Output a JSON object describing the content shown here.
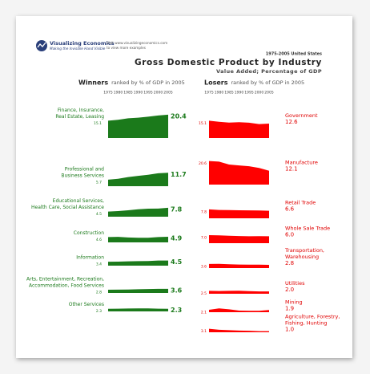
{
  "header": {
    "brand": "Visualizing Economics",
    "tagline": "Making the Invisible Hand Visible",
    "visit": "Visit www.visualizingeconomics.com",
    "visit2": "to view more examples"
  },
  "chart_data": {
    "type": "area",
    "supertitle": "1975-2005 United States",
    "title": "Gross Domestic Product by Industry",
    "subtitle": "Value Added; Percentage of GDP",
    "x": [
      1975,
      1980,
      1985,
      1990,
      1995,
      2000,
      2005
    ],
    "xticks": [
      1975,
      1980,
      1985,
      1990,
      1995,
      2000,
      2005
    ],
    "ylim": [
      0,
      21
    ],
    "groups": [
      {
        "title": "Winners",
        "note": "ranked by % of GDP in 2005",
        "color": "#1b7a1b",
        "label_color": "#1b7a1b",
        "series": [
          {
            "name": [
              "Finance, Insurance,",
              "Real Estate, Leasing"
            ],
            "values": [
              15.1,
              15.9,
              17.2,
              17.8,
              18.6,
              19.7,
              20.4
            ],
            "value_labels": [
              "15.1",
              null,
              null,
              null,
              null,
              null,
              "20.4"
            ]
          },
          {
            "name": [
              "Professional and",
              "Business Services"
            ],
            "values": [
              5.7,
              6.5,
              8.0,
              9.0,
              10.0,
              11.3,
              11.7
            ],
            "value_labels": [
              "5.7",
              null,
              null,
              null,
              null,
              null,
              "11.7"
            ]
          },
          {
            "name": [
              "Educational Services,",
              "Health Care, Social Assistance"
            ],
            "values": [
              4.5,
              4.9,
              5.6,
              6.5,
              7.0,
              7.1,
              7.8
            ],
            "value_labels": [
              "4.5",
              null,
              null,
              null,
              null,
              null,
              "7.8"
            ]
          },
          {
            "name": [
              "Construction"
            ],
            "values": [
              4.6,
              4.8,
              4.3,
              4.0,
              4.0,
              4.6,
              4.9
            ],
            "value_labels": [
              "4.6",
              null,
              null,
              null,
              null,
              null,
              "4.9"
            ]
          },
          {
            "name": [
              "Information"
            ],
            "values": [
              3.4,
              3.5,
              3.8,
              3.9,
              4.0,
              4.5,
              4.5
            ],
            "value_labels": [
              "3.4",
              null,
              null,
              null,
              null,
              null,
              "4.5"
            ]
          },
          {
            "name": [
              "Arts, Entertainment, Recreation,",
              "Accommodation, Food Services"
            ],
            "values": [
              2.8,
              2.9,
              3.0,
              3.2,
              3.4,
              3.6,
              3.6
            ],
            "value_labels": [
              "2.8",
              null,
              null,
              null,
              null,
              null,
              "3.6"
            ]
          },
          {
            "name": [
              "Other Services"
            ],
            "values": [
              2.3,
              2.4,
              2.5,
              2.6,
              2.6,
              2.4,
              2.3
            ],
            "value_labels": [
              "2.3",
              null,
              null,
              null,
              null,
              null,
              "2.3"
            ]
          }
        ]
      },
      {
        "title": "Losers",
        "note": "ranked by % of GDP in 2005",
        "color": "#ff0000",
        "label_color": "#e00000",
        "series": [
          {
            "name": [
              "Government"
            ],
            "values": [
              15.1,
              14.2,
              13.5,
              13.8,
              13.4,
              12.2,
              12.6
            ],
            "value_labels": [
              "15.1",
              null,
              null,
              null,
              null,
              null,
              "12.6"
            ]
          },
          {
            "name": [
              "Manufacture"
            ],
            "values": [
              20.6,
              20.0,
              17.5,
              16.7,
              16.0,
              14.5,
              12.1
            ],
            "value_labels": [
              "20.6",
              null,
              null,
              null,
              null,
              null,
              "12.1"
            ]
          },
          {
            "name": [
              "Retail Trade"
            ],
            "values": [
              7.8,
              7.3,
              7.2,
              7.0,
              6.9,
              6.8,
              6.6
            ],
            "value_labels": [
              "7.8",
              null,
              null,
              null,
              null,
              null,
              "6.6"
            ]
          },
          {
            "name": [
              "Whole Sale Trade"
            ],
            "values": [
              7.0,
              6.8,
              6.5,
              6.2,
              6.0,
              6.1,
              6.0
            ],
            "value_labels": [
              "7.0",
              null,
              null,
              null,
              null,
              null,
              "6.0"
            ]
          },
          {
            "name": [
              "Transportation,",
              "Warehousing"
            ],
            "values": [
              3.6,
              3.7,
              3.3,
              3.1,
              3.0,
              3.0,
              2.8
            ],
            "value_labels": [
              "3.6",
              null,
              null,
              null,
              null,
              null,
              "2.8"
            ]
          },
          {
            "name": [
              "Utilities"
            ],
            "values": [
              2.5,
              2.4,
              2.5,
              2.6,
              2.3,
              2.0,
              2.0
            ],
            "value_labels": [
              "2.5",
              null,
              null,
              null,
              null,
              null,
              "2.0"
            ]
          },
          {
            "name": [
              "Mining"
            ],
            "values": [
              2.1,
              3.3,
              2.5,
              1.4,
              1.2,
              1.2,
              1.9
            ],
            "value_labels": [
              "2.1",
              null,
              null,
              null,
              null,
              null,
              "1.9"
            ]
          },
          {
            "name": [
              "Agriculture, Forestry,",
              "Fishing, Hunting"
            ],
            "values": [
              3.1,
              2.2,
              1.8,
              1.5,
              1.3,
              1.0,
              1.0
            ],
            "value_labels": [
              "3.1",
              null,
              null,
              null,
              null,
              null,
              "1.0"
            ]
          }
        ]
      }
    ]
  }
}
